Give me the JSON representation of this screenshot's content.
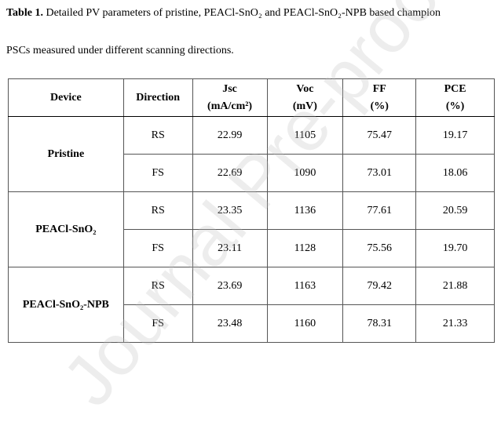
{
  "caption": {
    "label": "Table 1.",
    "lines": [
      "Detailed PV parameters of pristine, PEACl-SnO₂ and PEACl-SnO₂-NPB based champion",
      "PSCs measured under different scanning directions."
    ]
  },
  "watermark": "Journal Pre-proof",
  "table": {
    "header": [
      [
        "Device"
      ],
      [
        "Direction"
      ],
      [
        "Jsc",
        "(mA/cm²)"
      ],
      [
        "Voc",
        "(mV)"
      ],
      [
        "FF",
        "(%)"
      ],
      [
        "PCE",
        "(%)"
      ]
    ],
    "groups": [
      {
        "device": "Pristine",
        "rows": [
          [
            "RS",
            "22.99",
            "1105",
            "75.47",
            "19.17"
          ],
          [
            "FS",
            "22.69",
            "1090",
            "73.01",
            "18.06"
          ]
        ]
      },
      {
        "device": "PEACl-SnO₂",
        "rows": [
          [
            "RS",
            "23.35",
            "1136",
            "77.61",
            "20.59"
          ],
          [
            "FS",
            "23.11",
            "1128",
            "75.56",
            "19.70"
          ]
        ]
      },
      {
        "device": "PEACl-SnO₂-NPB",
        "rows": [
          [
            "RS",
            "23.69",
            "1163",
            "79.42",
            "21.88"
          ],
          [
            "FS",
            "23.48",
            "1160",
            "78.31",
            "21.33"
          ]
        ]
      }
    ]
  }
}
